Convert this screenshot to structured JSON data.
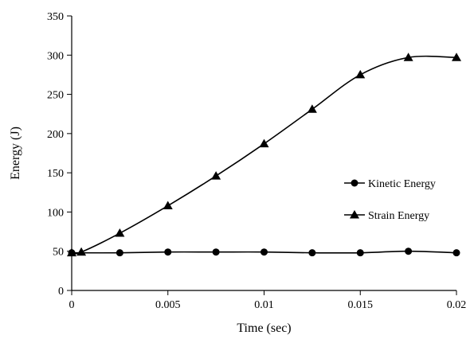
{
  "chart_data": {
    "type": "line",
    "title": "",
    "xlabel": "Time (sec)",
    "ylabel": "Energy (J)",
    "xlim": [
      0,
      0.02
    ],
    "ylim": [
      0,
      350
    ],
    "x_ticks": [
      "0",
      "0.005",
      "0.01",
      "0.015",
      "0.02"
    ],
    "y_ticks": [
      "0",
      "50",
      "100",
      "150",
      "200",
      "250",
      "300",
      "350"
    ],
    "grid": false,
    "legend_position": "right",
    "series": [
      {
        "name": "Kinetic Energy",
        "marker": "circle",
        "color": "#000000",
        "x": [
          0,
          0.0025,
          0.005,
          0.0075,
          0.01,
          0.0125,
          0.015,
          0.0175,
          0.02
        ],
        "y": [
          48,
          48,
          49,
          49,
          49,
          48,
          48,
          50,
          48
        ]
      },
      {
        "name": "Strain Energy",
        "marker": "triangle",
        "color": "#000000",
        "x": [
          0,
          0.0005,
          0.0025,
          0.005,
          0.0075,
          0.01,
          0.0125,
          0.015,
          0.0175,
          0.02
        ],
        "y": [
          48,
          49,
          73,
          108,
          146,
          187,
          231,
          275,
          297,
          297
        ]
      }
    ]
  }
}
